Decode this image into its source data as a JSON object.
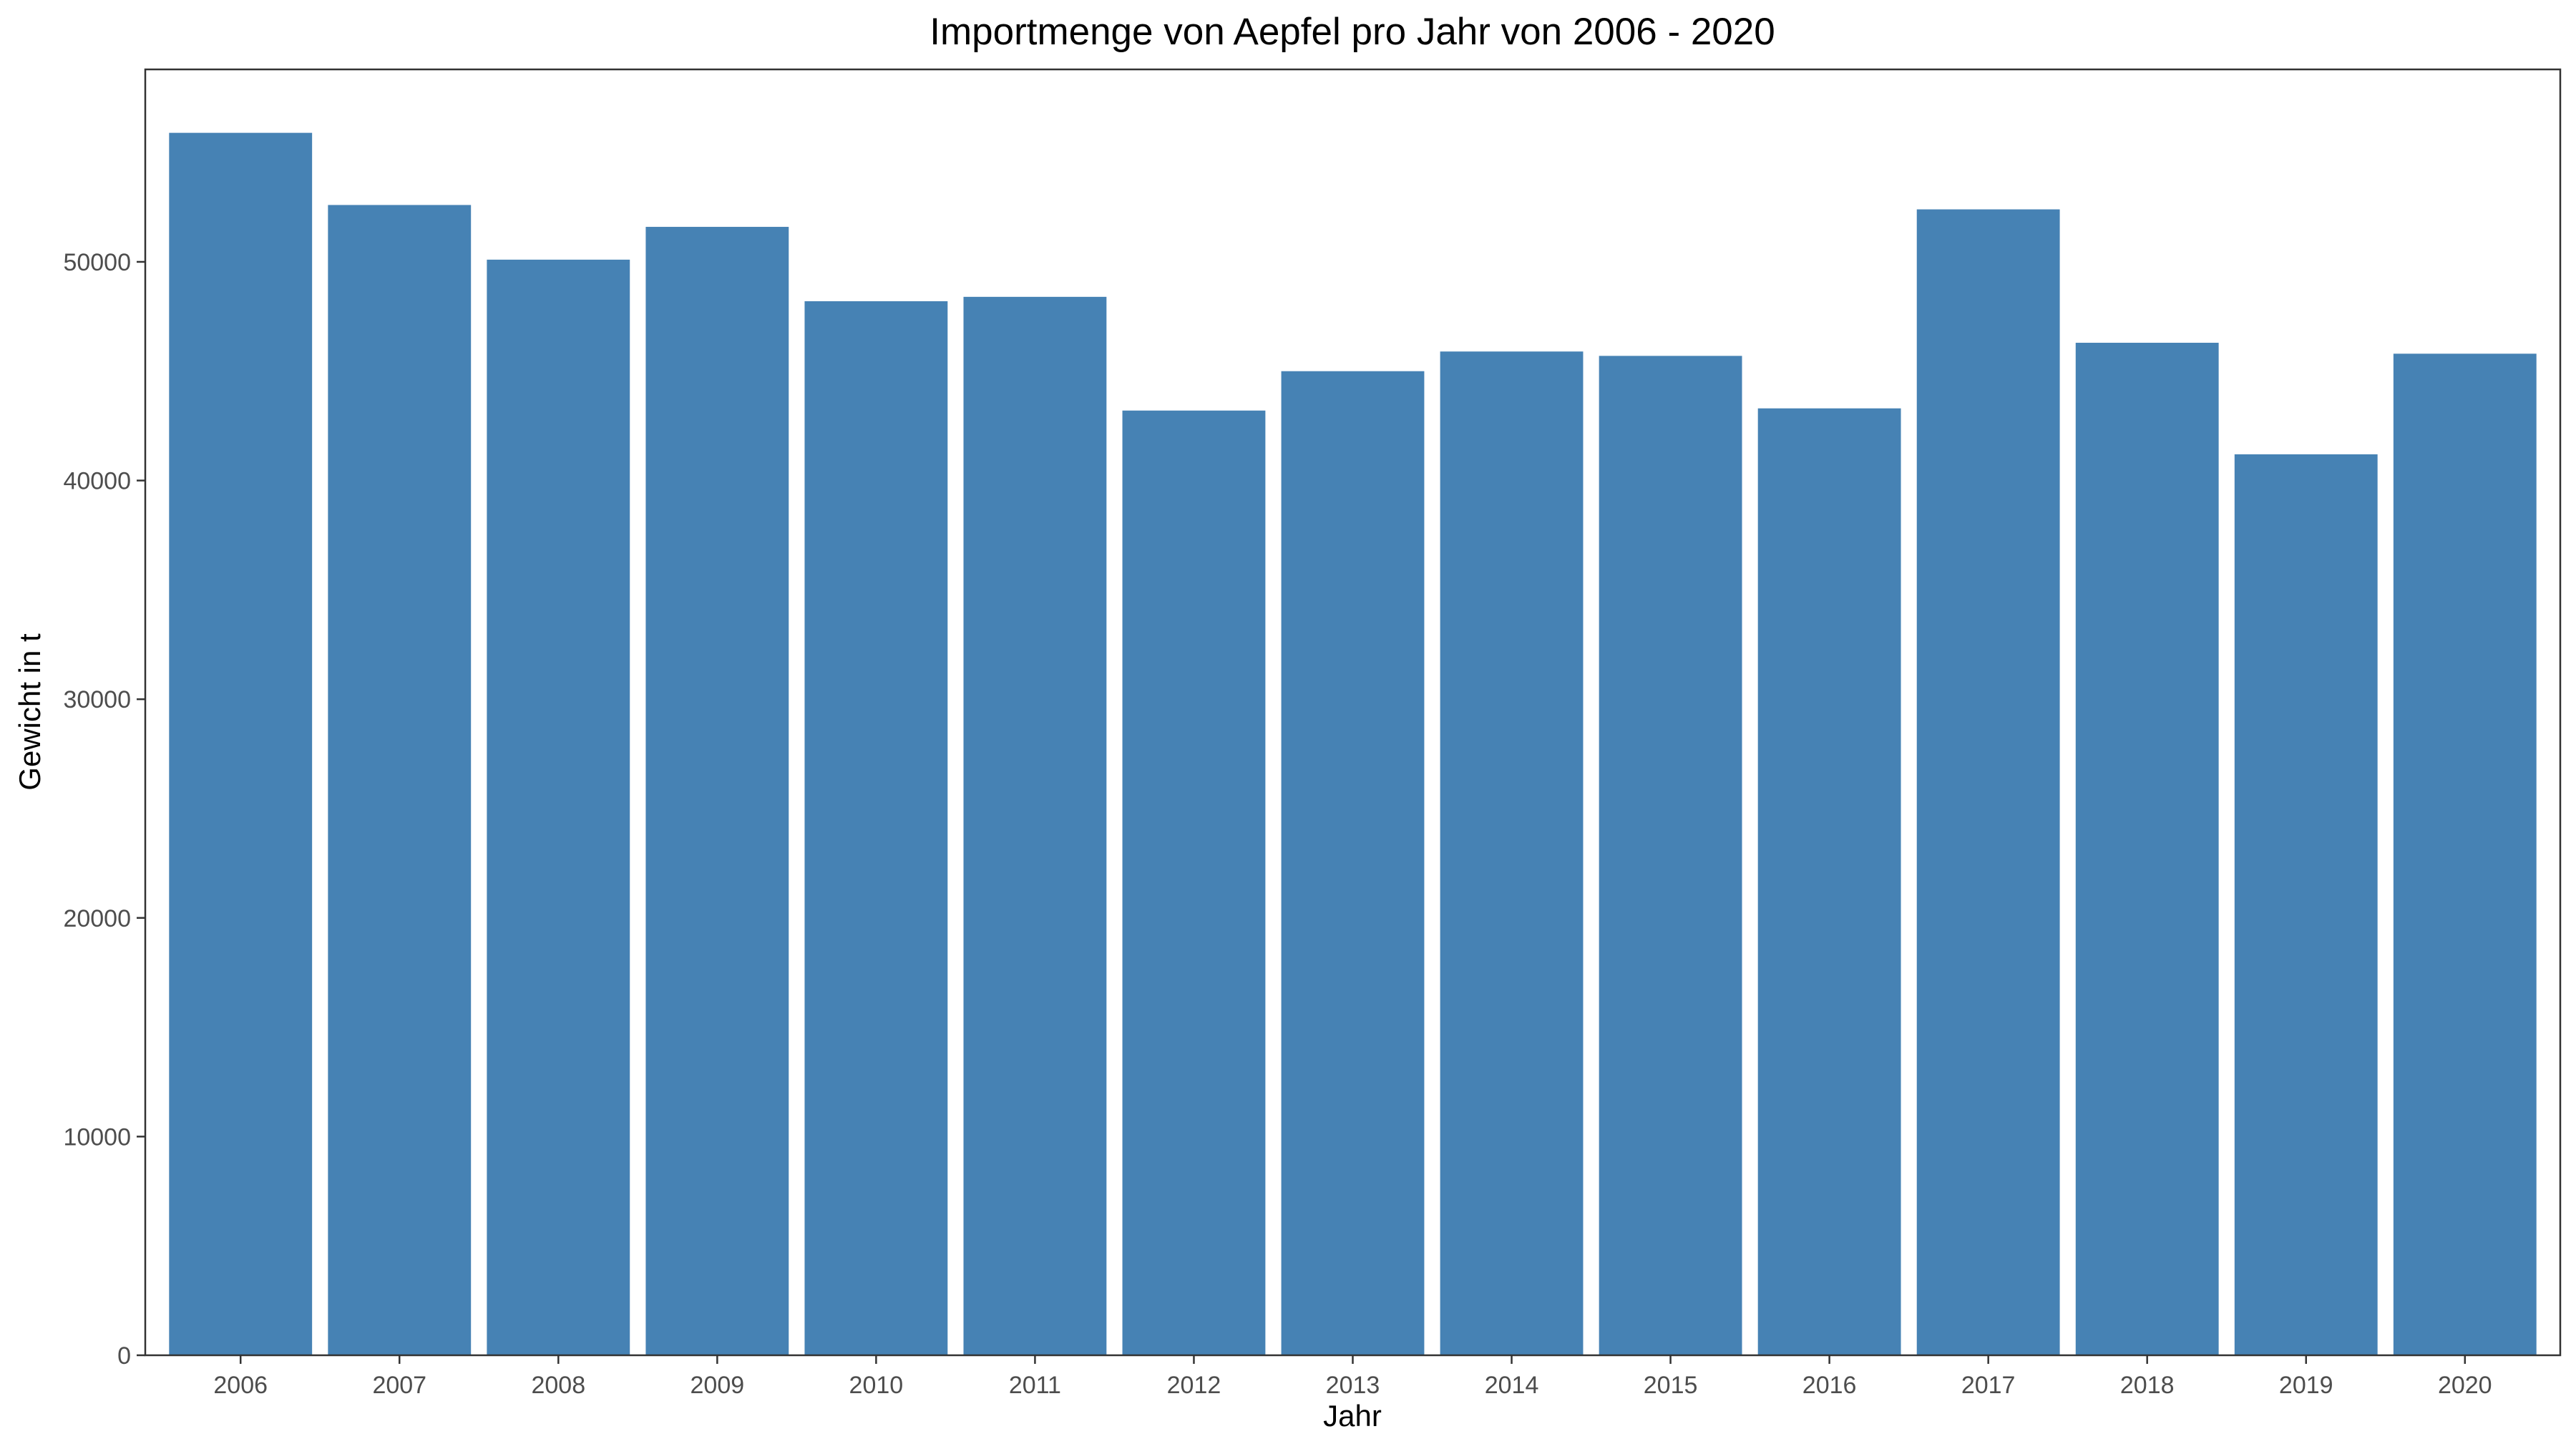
{
  "chart_data": {
    "type": "bar",
    "title": "Importmenge von Aepfel pro Jahr von 2006 - 2020",
    "xlabel": "Jahr",
    "ylabel": "Gewicht in t",
    "categories": [
      "2006",
      "2007",
      "2008",
      "2009",
      "2010",
      "2011",
      "2012",
      "2013",
      "2014",
      "2015",
      "2016",
      "2017",
      "2018",
      "2019",
      "2020"
    ],
    "values": [
      55900,
      52600,
      50100,
      51600,
      48200,
      48400,
      43200,
      45000,
      45900,
      45700,
      43300,
      52400,
      46300,
      41200,
      45800
    ],
    "ylim": [
      0,
      58800
    ],
    "yticks": [
      0,
      10000,
      20000,
      30000,
      40000,
      50000
    ],
    "ytick_labels": [
      "0",
      "10000",
      "20000",
      "30000",
      "40000",
      "50000"
    ],
    "grid": false,
    "bar_color": "#4682b4"
  }
}
